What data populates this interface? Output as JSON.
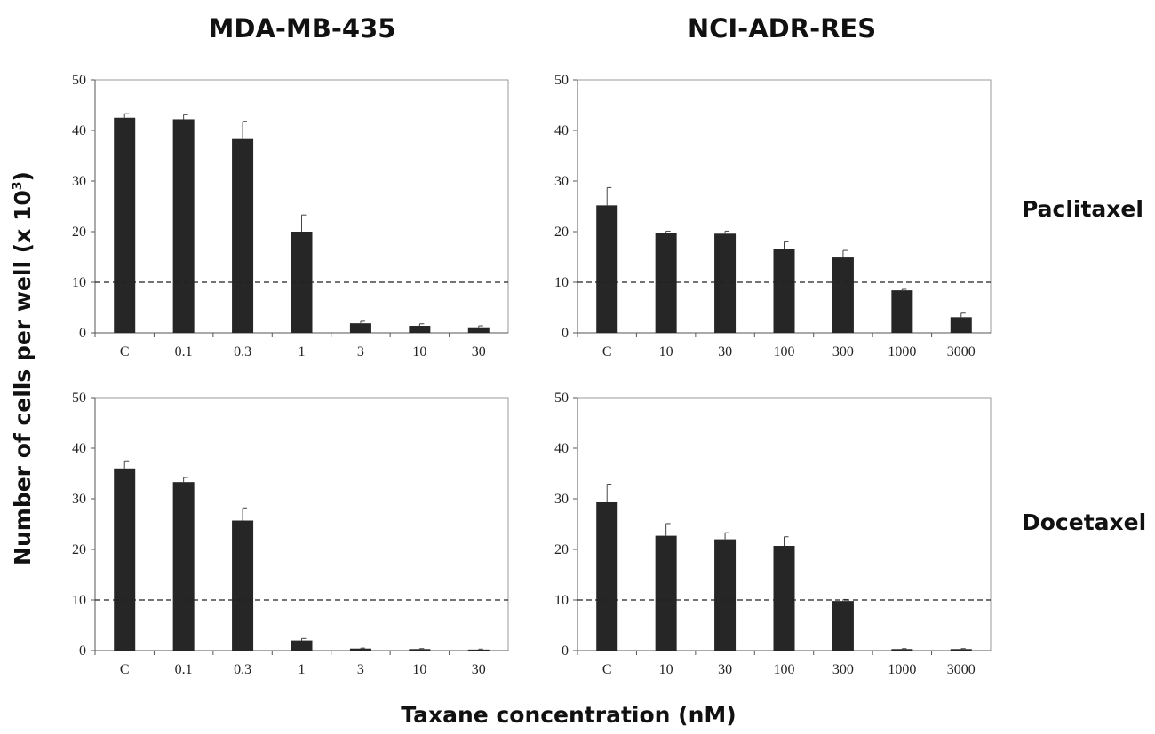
{
  "figure": {
    "column_titles": [
      "MDA-MB-435",
      "NCI-ADR-RES"
    ],
    "row_labels": [
      "Paclitaxel",
      "Docetaxel"
    ],
    "ylabel_main": "Number of cells per well (x 10",
    "ylabel_sup": "3",
    "ylabel_end": ")",
    "xlabel": "Taxane concentration (nM)"
  },
  "chart_data": [
    {
      "type": "bar",
      "column": "MDA-MB-435",
      "row": "Paclitaxel",
      "categories": [
        "C",
        "0.1",
        "0.3",
        "1",
        "3",
        "10",
        "30"
      ],
      "values": [
        42.5,
        42.2,
        38.3,
        20.0,
        1.9,
        1.4,
        1.1
      ],
      "errors": [
        0.8,
        0.9,
        3.5,
        3.3,
        0.4,
        0.4,
        0.3
      ],
      "ylim": [
        0,
        50
      ],
      "yticks": [
        0,
        10,
        20,
        30,
        40,
        50
      ],
      "reference_line": 10,
      "bar_color": "#262626"
    },
    {
      "type": "bar",
      "column": "NCI-ADR-RES",
      "row": "Paclitaxel",
      "categories": [
        "C",
        "10",
        "30",
        "100",
        "300",
        "1000",
        "3000"
      ],
      "values": [
        25.2,
        19.8,
        19.6,
        16.6,
        14.9,
        8.4,
        3.1
      ],
      "errors": [
        3.5,
        0.3,
        0.5,
        1.4,
        1.4,
        0.2,
        0.8
      ],
      "ylim": [
        0,
        50
      ],
      "yticks": [
        0,
        10,
        20,
        30,
        40,
        50
      ],
      "reference_line": 10,
      "bar_color": "#262626"
    },
    {
      "type": "bar",
      "column": "MDA-MB-435",
      "row": "Docetaxel",
      "categories": [
        "C",
        "0.1",
        "0.3",
        "1",
        "3",
        "10",
        "30"
      ],
      "values": [
        36.0,
        33.3,
        25.7,
        2.0,
        0.4,
        0.3,
        0.2
      ],
      "errors": [
        1.5,
        0.9,
        2.5,
        0.4,
        0.1,
        0.1,
        0.1
      ],
      "ylim": [
        0,
        50
      ],
      "yticks": [
        0,
        10,
        20,
        30,
        40,
        50
      ],
      "reference_line": 10,
      "bar_color": "#262626"
    },
    {
      "type": "bar",
      "column": "NCI-ADR-RES",
      "row": "Docetaxel",
      "categories": [
        "C",
        "10",
        "30",
        "100",
        "300",
        "1000",
        "3000"
      ],
      "values": [
        29.3,
        22.7,
        22.0,
        20.7,
        9.8,
        0.3,
        0.3
      ],
      "errors": [
        3.6,
        2.4,
        1.3,
        1.8,
        0.3,
        0.1,
        0.1
      ],
      "ylim": [
        0,
        50
      ],
      "yticks": [
        0,
        10,
        20,
        30,
        40,
        50
      ],
      "reference_line": 10,
      "bar_color": "#262626"
    }
  ]
}
